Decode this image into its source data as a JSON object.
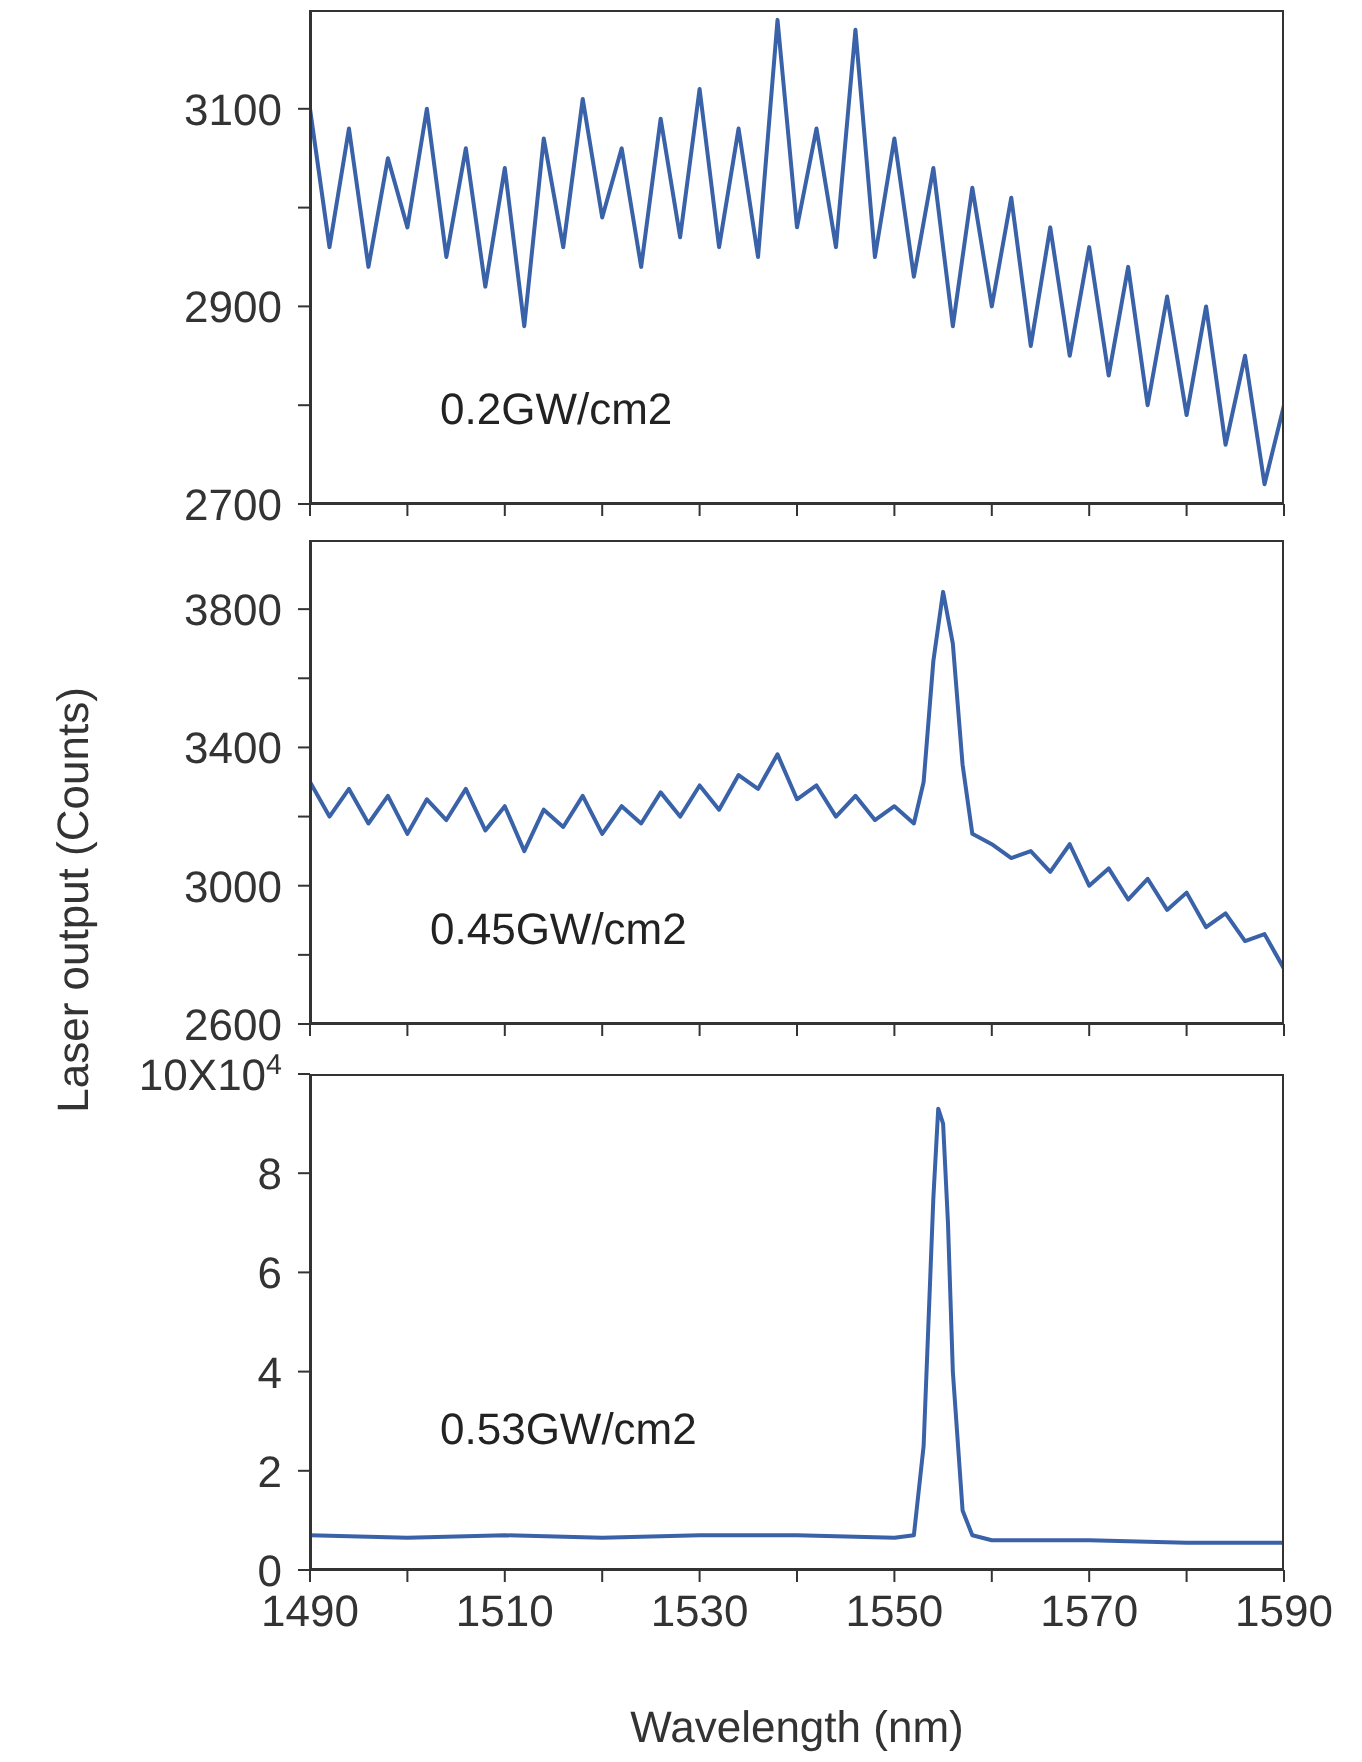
{
  "chart_data": [
    {
      "type": "line",
      "x": [
        1490,
        1492,
        1494,
        1496,
        1498,
        1500,
        1502,
        1504,
        1506,
        1508,
        1510,
        1512,
        1514,
        1516,
        1518,
        1520,
        1522,
        1524,
        1526,
        1528,
        1530,
        1532,
        1534,
        1536,
        1538,
        1540,
        1542,
        1544,
        1546,
        1548,
        1550,
        1552,
        1554,
        1556,
        1558,
        1560,
        1562,
        1564,
        1566,
        1568,
        1570,
        1572,
        1574,
        1576,
        1578,
        1580,
        1582,
        1584,
        1586,
        1588,
        1590
      ],
      "series": [
        {
          "color": "#3a62a8",
          "values": [
            3100,
            2960,
            3080,
            2940,
            3050,
            2980,
            3100,
            2950,
            3060,
            2920,
            3040,
            2880,
            3070,
            2960,
            3110,
            2990,
            3060,
            2940,
            3090,
            2970,
            3120,
            2960,
            3080,
            2950,
            3190,
            2980,
            3080,
            2960,
            3180,
            2950,
            3070,
            2930,
            3040,
            2880,
            3020,
            2900,
            3010,
            2860,
            2980,
            2850,
            2960,
            2830,
            2940,
            2800,
            2910,
            2790,
            2900,
            2760,
            2850,
            2720,
            2800
          ]
        }
      ],
      "xlim": [
        1490,
        1590
      ],
      "xticks": [
        1490,
        {
          "value": 1500,
          "label": null
        },
        1510,
        {
          "value": 1520,
          "label": null
        },
        1530,
        {
          "value": 1540,
          "label": null
        },
        1550,
        {
          "value": 1560,
          "label": null
        },
        1570,
        {
          "value": 1580,
          "label": null
        },
        1590
      ],
      "ylim": [
        2700,
        3200
      ],
      "yticks": [
        2700,
        {
          "value": 2800,
          "label": null
        },
        2900,
        {
          "value": 3000,
          "label": null
        },
        3100
      ],
      "tick_labels": "y",
      "annotations": [
        "0.2GW/cm2"
      ]
    },
    {
      "type": "line",
      "x": [
        1490,
        1492,
        1494,
        1496,
        1498,
        1500,
        1502,
        1504,
        1506,
        1508,
        1510,
        1512,
        1514,
        1516,
        1518,
        1520,
        1522,
        1524,
        1526,
        1528,
        1530,
        1532,
        1534,
        1536,
        1538,
        1540,
        1542,
        1544,
        1546,
        1548,
        1550,
        1552,
        1553,
        1554,
        1555,
        1556,
        1557,
        1558,
        1560,
        1562,
        1564,
        1566,
        1568,
        1570,
        1572,
        1574,
        1576,
        1578,
        1580,
        1582,
        1584,
        1586,
        1588,
        1590
      ],
      "series": [
        {
          "color": "#3a62a8",
          "values": [
            3300,
            3200,
            3280,
            3180,
            3260,
            3150,
            3250,
            3190,
            3280,
            3160,
            3230,
            3100,
            3220,
            3170,
            3260,
            3150,
            3230,
            3180,
            3270,
            3200,
            3290,
            3220,
            3320,
            3280,
            3380,
            3250,
            3290,
            3200,
            3260,
            3190,
            3230,
            3180,
            3300,
            3650,
            3850,
            3700,
            3350,
            3150,
            3120,
            3080,
            3100,
            3040,
            3120,
            3000,
            3050,
            2960,
            3020,
            2930,
            2980,
            2880,
            2920,
            2840,
            2860,
            2760
          ]
        }
      ],
      "xlim": [
        1490,
        1590
      ],
      "xticks": [
        1490,
        {
          "value": 1500,
          "label": null
        },
        1510,
        {
          "value": 1520,
          "label": null
        },
        1530,
        {
          "value": 1540,
          "label": null
        },
        1550,
        {
          "value": 1560,
          "label": null
        },
        1570,
        {
          "value": 1580,
          "label": null
        },
        1590
      ],
      "ylim": [
        2600,
        4000
      ],
      "yticks": [
        2600,
        {
          "value": 2800,
          "label": null
        },
        3000,
        {
          "value": 3200,
          "label": null
        },
        3400,
        {
          "value": 3600,
          "label": null
        },
        3800
      ],
      "tick_labels": "y",
      "ylabel": "Laser output (Counts)",
      "annotations": [
        "0.45GW/cm2"
      ]
    },
    {
      "type": "line",
      "x": [
        1490,
        1500,
        1510,
        1520,
        1530,
        1540,
        1550,
        1552,
        1553,
        1554,
        1554.5,
        1555,
        1555.5,
        1556,
        1557,
        1558,
        1560,
        1570,
        1580,
        1590
      ],
      "series": [
        {
          "color": "#3a62a8",
          "values": [
            0.7,
            0.65,
            0.7,
            0.65,
            0.7,
            0.7,
            0.65,
            0.7,
            2.5,
            7.5,
            9.3,
            9.0,
            7.0,
            4,
            1.2,
            0.7,
            0.6,
            0.6,
            0.55,
            0.55
          ]
        }
      ],
      "xlim": [
        1490,
        1590
      ],
      "xticks": [
        1490,
        {
          "value": 1500,
          "label": null
        },
        1510,
        {
          "value": 1520,
          "label": null
        },
        1530,
        {
          "value": 1540,
          "label": null
        },
        1550,
        {
          "value": 1560,
          "label": null
        },
        1570,
        {
          "value": 1580,
          "label": null
        },
        1590
      ],
      "ylim": [
        0,
        10
      ],
      "yticks": [
        0,
        2,
        4,
        6,
        8,
        {
          "value": 10,
          "label": "10X10$^{4}$"
        }
      ],
      "xlabel": "Wavelength (nm)",
      "annotations": [
        "0.53GW/cm2"
      ]
    }
  ]
}
